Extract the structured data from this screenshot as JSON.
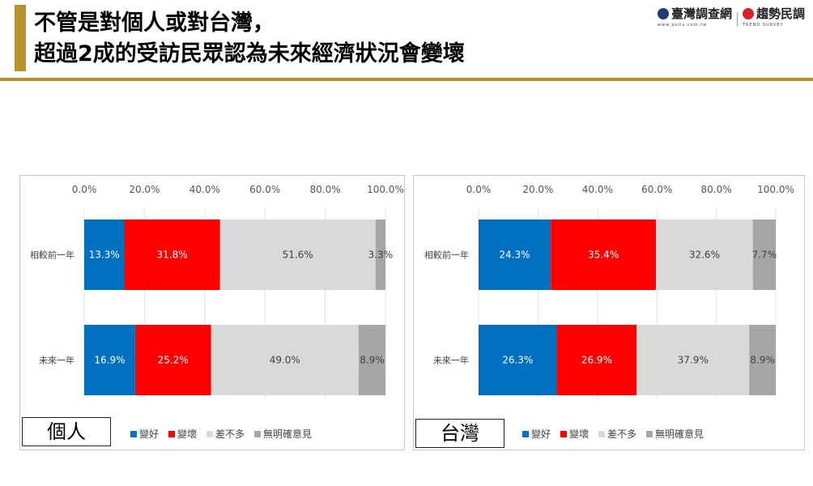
{
  "title": {
    "line1": "不管是對個人或對台灣，",
    "line2": "超過2成的受訪民眾認為未來經濟狀況會變壞"
  },
  "logos": {
    "left_name": "臺灣調查網",
    "left_sub": "www.pollx.com.tw",
    "right_name": "趨勢民調",
    "right_sub": "TREND SURVEY"
  },
  "colors": {
    "accent": "#b8902e",
    "better": "#0070c0",
    "worse": "#ff0000",
    "same": "#d9d9d9",
    "unknown": "#a6a6a6"
  },
  "chart_data": [
    {
      "type": "bar",
      "orientation": "horizontal",
      "stacked": true,
      "panel_label": "個人",
      "categories": [
        "相較前一年",
        "未來一年"
      ],
      "x_ticks": [
        "0.0%",
        "20.0%",
        "40.0%",
        "60.0%",
        "80.0%",
        "100.0%"
      ],
      "xlim": [
        0,
        100
      ],
      "gridlines": true,
      "legend_position": "bottom",
      "series": [
        {
          "name": "變好",
          "color": "#0070c0",
          "values": [
            13.3,
            16.9
          ],
          "labels": [
            "13.3%",
            "16.9%"
          ]
        },
        {
          "name": "變壞",
          "color": "#ff0000",
          "values": [
            31.8,
            25.2
          ],
          "labels": [
            "31.8%",
            "25.2%"
          ]
        },
        {
          "name": "差不多",
          "color": "#d9d9d9",
          "values": [
            51.6,
            49.0
          ],
          "labels": [
            "51.6%",
            "49.0%"
          ]
        },
        {
          "name": "無明確意見",
          "color": "#a6a6a6",
          "values": [
            3.3,
            8.9
          ],
          "labels": [
            "3.3%",
            "8.9%"
          ]
        }
      ]
    },
    {
      "type": "bar",
      "orientation": "horizontal",
      "stacked": true,
      "panel_label": "台灣",
      "categories": [
        "相較前一年",
        "未來一年"
      ],
      "x_ticks": [
        "0.0%",
        "20.0%",
        "40.0%",
        "60.0%",
        "80.0%",
        "100.0%"
      ],
      "xlim": [
        0,
        100
      ],
      "gridlines": true,
      "legend_position": "bottom",
      "series": [
        {
          "name": "變好",
          "color": "#0070c0",
          "values": [
            24.3,
            26.3
          ],
          "labels": [
            "24.3%",
            "26.3%"
          ]
        },
        {
          "name": "變壞",
          "color": "#ff0000",
          "values": [
            35.4,
            26.9
          ],
          "labels": [
            "35.4%",
            "26.9%"
          ]
        },
        {
          "name": "差不多",
          "color": "#d9d9d9",
          "values": [
            32.6,
            37.9
          ],
          "labels": [
            "32.6%",
            "37.9%"
          ]
        },
        {
          "name": "無明確意見",
          "color": "#a6a6a6",
          "values": [
            7.7,
            8.9
          ],
          "labels": [
            "7.7%",
            "8.9%"
          ]
        }
      ]
    }
  ]
}
